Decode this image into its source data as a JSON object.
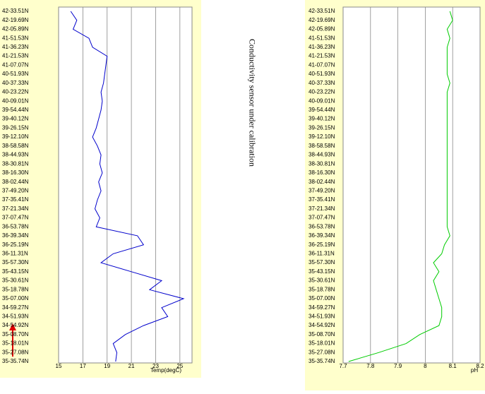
{
  "chart_data": [
    {
      "type": "line",
      "x_label": "Temp(degC)",
      "color": "#0000cc",
      "categories": [
        "42-33.51N",
        "42-19.69N",
        "42-05.89N",
        "41-51.53N",
        "41-36.23N",
        "41-21.53N",
        "41-07.07N",
        "40-51.93N",
        "40-37.33N",
        "40-23.22N",
        "40-09.01N",
        "39-54.44N",
        "39-40.12N",
        "39-26.15N",
        "39-12.10N",
        "38-58.58N",
        "38-44.93N",
        "38-30.81N",
        "38-16.30N",
        "38-02.44N",
        "37-49.20N",
        "37-35.41N",
        "37-21.34N",
        "37-07.47N",
        "36-53.78N",
        "36-39.34N",
        "36-25.19N",
        "36-11.31N",
        "35-57.30N",
        "35-43.15N",
        "35-30.61N",
        "35-18.78N",
        "35-07.00N",
        "34-59.27N",
        "34-51.93N",
        "34-54.92N",
        "35-08.70N",
        "35-18.01N",
        "35-27.08N",
        "35-35.74N"
      ],
      "values": [
        16,
        16.5,
        16.2,
        17.5,
        17.8,
        19,
        18.9,
        18.8,
        18.7,
        18.5,
        18.6,
        18.5,
        18.3,
        18.1,
        17.8,
        18.2,
        18.5,
        18.4,
        18.6,
        18.3,
        18.5,
        18.2,
        18,
        18.4,
        18.1,
        21.5,
        22,
        19.5,
        18.5,
        21,
        23.5,
        22.5,
        25.3,
        23.5,
        24,
        22,
        20.5,
        19.5,
        19.8,
        19.7
      ],
      "xlim": [
        15,
        26
      ],
      "xticks": [
        15,
        17,
        19,
        21,
        23,
        25
      ],
      "grid": true
    },
    {
      "type": "line",
      "x_label": "pH",
      "color": "#00cc00",
      "categories": [
        "42-33.51N",
        "42-19.69N",
        "42-05.89N",
        "41-51.53N",
        "41-36.23N",
        "41-21.53N",
        "41-07.07N",
        "40-51.93N",
        "40-37.33N",
        "40-23.22N",
        "40-09.01N",
        "39-54.44N",
        "39-40.12N",
        "39-26.15N",
        "39-12.10N",
        "38-58.58N",
        "38-44.93N",
        "38-30.81N",
        "38-16.30N",
        "38-02.44N",
        "37-49.20N",
        "37-35.41N",
        "37-21.34N",
        "37-07.47N",
        "36-53.78N",
        "36-39.34N",
        "36-25.19N",
        "36-11.31N",
        "35-57.30N",
        "35-43.15N",
        "35-30.61N",
        "35-18.78N",
        "35-07.00N",
        "34-59.27N",
        "34-51.93N",
        "34-54.92N",
        "35-08.70N",
        "35-18.01N",
        "35-27.08N",
        "35-35.74N"
      ],
      "values": [
        8.09,
        8.1,
        8.08,
        8.09,
        8.08,
        8.08,
        8.08,
        8.08,
        8.09,
        8.08,
        8.08,
        8.08,
        8.08,
        8.08,
        8.08,
        8.08,
        8.08,
        8.08,
        8.08,
        8.08,
        8.08,
        8.08,
        8.08,
        8.08,
        8.08,
        8.09,
        8.07,
        8.06,
        8.03,
        8.05,
        8.03,
        8.04,
        8.05,
        8.06,
        8.06,
        8.05,
        7.98,
        7.93,
        7.83,
        7.72
      ],
      "xlim": [
        7.7,
        8.2
      ],
      "xticks": [
        7.7,
        7.8,
        7.9,
        {
          "value": 8,
          "label": "8"
        },
        8.1,
        8.2
      ],
      "grid": true
    }
  ],
  "note": "Conductivity sensor under calibration"
}
